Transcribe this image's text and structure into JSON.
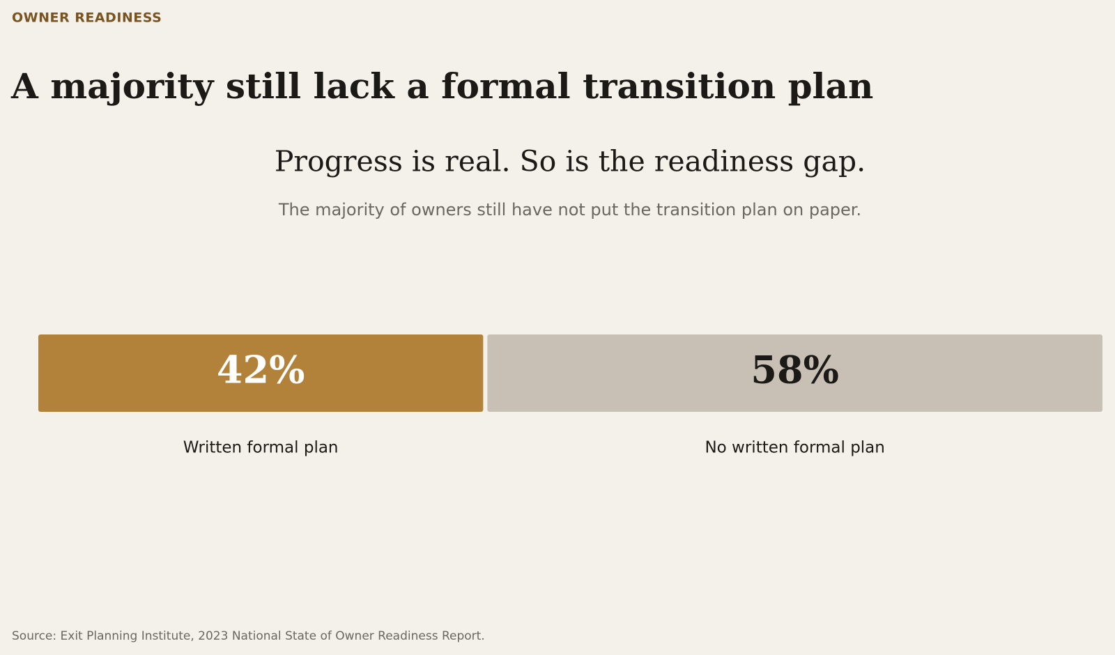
{
  "header": {
    "eyebrow": "OWNER READINESS",
    "title": "A majority still lack a formal transition plan"
  },
  "chart_data": {
    "type": "stacked-bar",
    "title": "Progress is real. So is the readiness gap.",
    "subtitle": "The majority of owners still have not put the transition plan on paper.",
    "xlim": [
      0,
      100
    ],
    "series": [
      {
        "name": "Written formal plan",
        "color": "#b2823b",
        "values": [
          42
        ],
        "value_labels": [
          "42%"
        ]
      },
      {
        "name": "No written formal plan",
        "color": "#c8c0b4",
        "values": [
          58
        ],
        "value_labels": [
          "58%"
        ]
      }
    ]
  },
  "footer": {
    "source": "Source: Exit Planning Institute, 2023 National State of Owner Readiness Report."
  }
}
